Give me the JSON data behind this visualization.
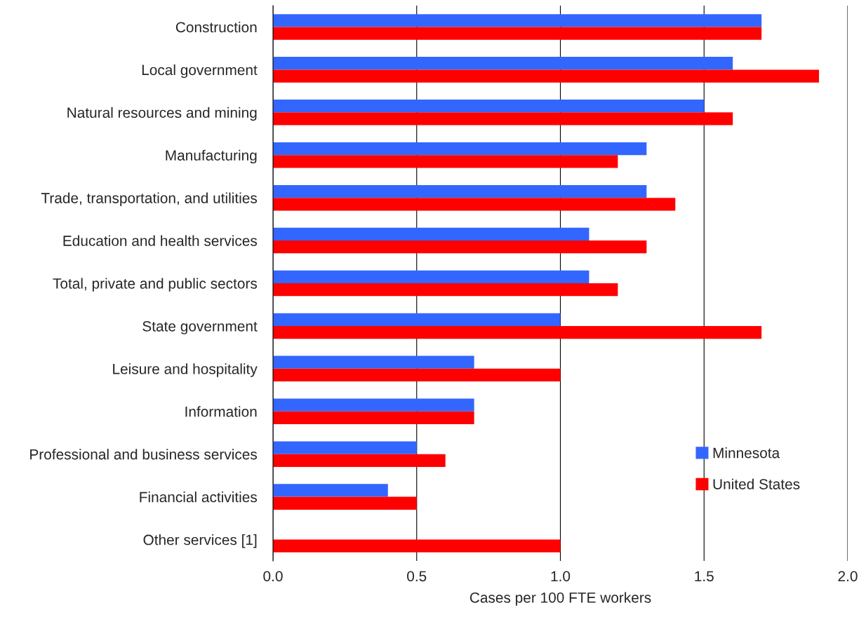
{
  "chart_data": {
    "type": "bar",
    "orientation": "horizontal",
    "xlabel": "Cases per 100 FTE workers",
    "categories": [
      "Construction",
      "Local government",
      "Natural resources and mining",
      "Manufacturing",
      "Trade, transportation, and utilities",
      "Education and health services",
      "Total, private and public sectors",
      "State government",
      "Leisure and hospitality",
      "Information",
      "Professional and business services",
      "Financial activities",
      "Other services [1]"
    ],
    "series": [
      {
        "name": "Minnesota",
        "color": "#3366ff",
        "values": [
          1.7,
          1.6,
          1.5,
          1.3,
          1.3,
          1.1,
          1.1,
          1.0,
          0.7,
          0.7,
          0.5,
          0.4,
          null
        ]
      },
      {
        "name": "United States",
        "color": "#ff0000",
        "values": [
          1.7,
          1.9,
          1.6,
          1.2,
          1.4,
          1.3,
          1.2,
          1.7,
          1.0,
          0.7,
          0.6,
          0.5,
          1.0
        ]
      }
    ],
    "xlim": [
      0,
      2
    ],
    "xticks": [
      {
        "value": 0,
        "label": "0.0"
      },
      {
        "value": 0.5,
        "label": "0.5"
      },
      {
        "value": 1,
        "label": "1.0"
      },
      {
        "value": 1.5,
        "label": "1.5"
      },
      {
        "value": 2,
        "label": "2.0"
      }
    ],
    "grid": "x",
    "legend": "bottom right"
  }
}
